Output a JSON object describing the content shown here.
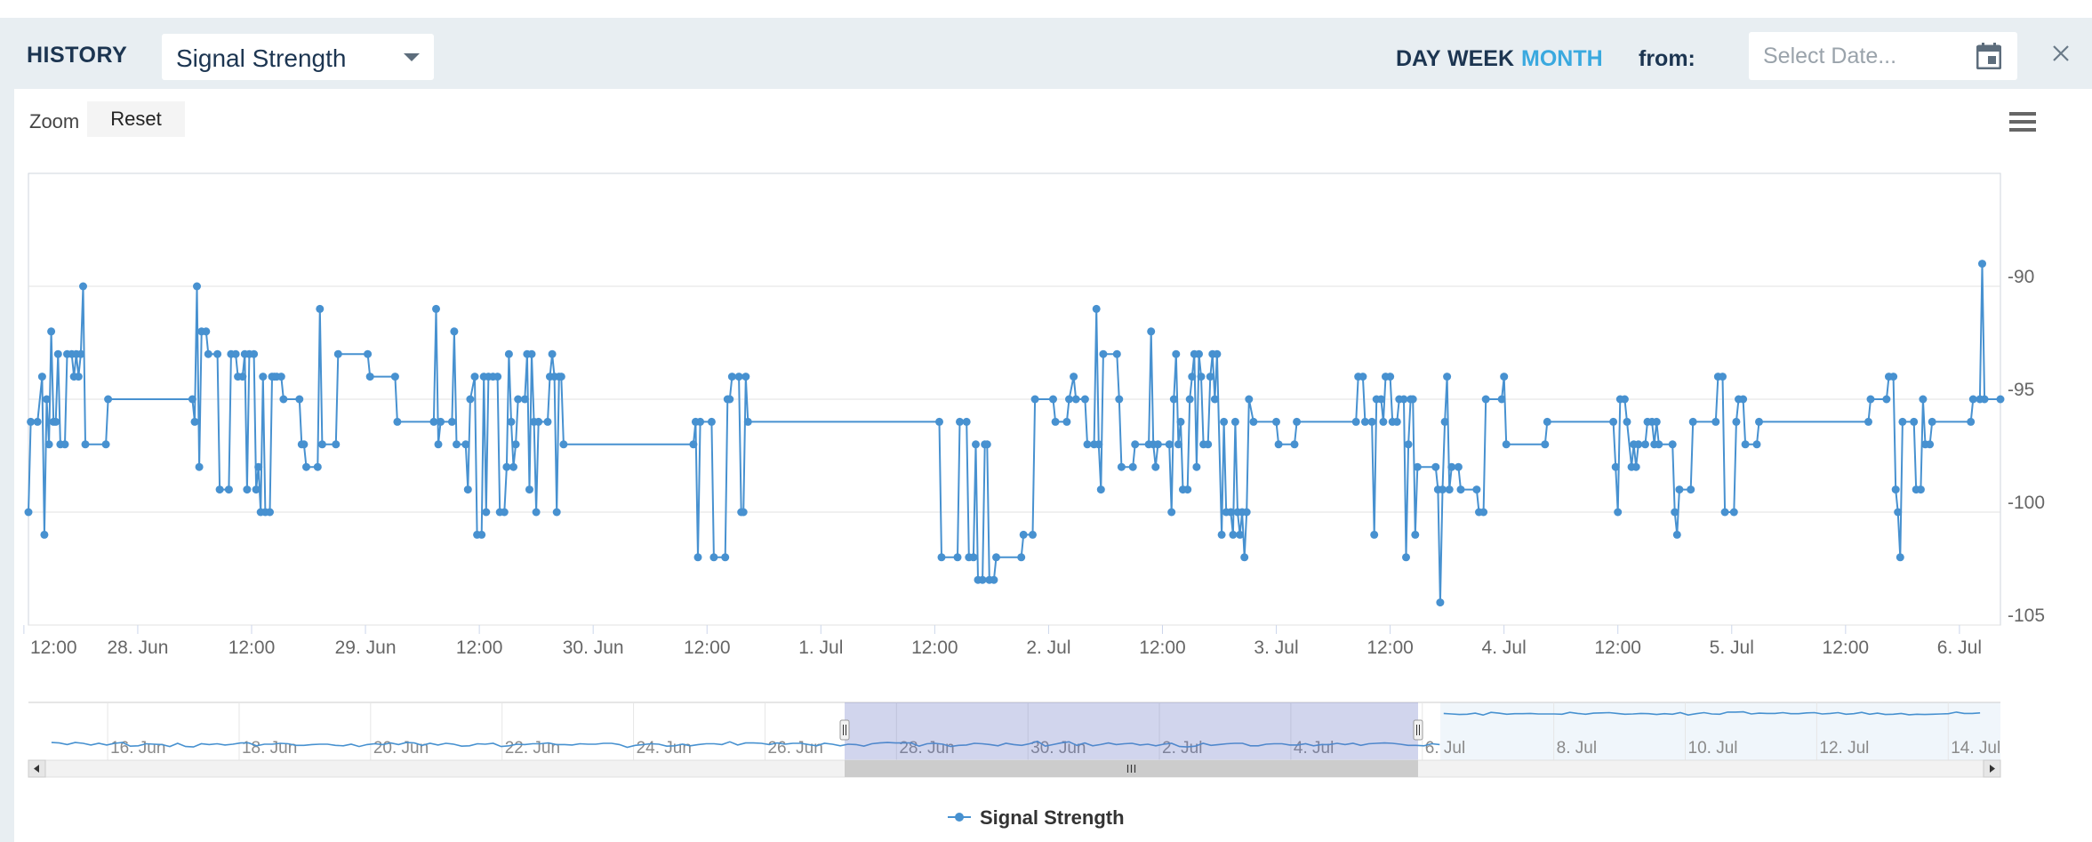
{
  "header": {
    "title": "HISTORY",
    "metric_select": {
      "value": "Signal Strength"
    },
    "range_buttons": [
      {
        "label": "DAY",
        "active": false
      },
      {
        "label": "WEEK",
        "active": false
      },
      {
        "label": "MONTH",
        "active": true
      }
    ],
    "from_label": "from:",
    "date_input": {
      "placeholder": "Select Date...",
      "value": ""
    }
  },
  "toolbar": {
    "zoom_label": "Zoom",
    "reset_label": "Reset"
  },
  "icons": {
    "dropdown": "chevron-down-icon",
    "calendar": "calendar-icon",
    "close": "close-icon",
    "chart_menu": "hamburger-menu-icon"
  },
  "colors": {
    "series": "#4791d0",
    "accent": "#3aa9df",
    "title": "#1c3551",
    "navigator_mask": "#6673c4"
  },
  "chart_data": {
    "type": "line",
    "title": "",
    "xlabel": "",
    "ylabel": "",
    "ylim": [
      -105,
      -85
    ],
    "y_ticks": [
      "-90",
      "-95",
      "-100",
      "-105"
    ],
    "x_tick_labels": [
      "12:00",
      "28. Jun",
      "12:00",
      "29. Jun",
      "12:00",
      "30. Jun",
      "12:00",
      "1. Jul",
      "12:00",
      "2. Jul",
      "12:00",
      "3. Jul",
      "12:00",
      "4. Jul",
      "12:00",
      "5. Jul",
      "12:00",
      "6. Jul"
    ],
    "x_range_days": [
      -0.48,
      8.18
    ],
    "series": [
      {
        "name": "Signal Strength",
        "x_unit": "days since 28. Jun 00:00",
        "points": [
          [
            -0.48,
            -100
          ],
          [
            -0.47,
            -96
          ],
          [
            -0.44,
            -96
          ],
          [
            -0.42,
            -94
          ],
          [
            -0.41,
            -101
          ],
          [
            -0.4,
            -95
          ],
          [
            -0.39,
            -97
          ],
          [
            -0.38,
            -92
          ],
          [
            -0.37,
            -96
          ],
          [
            -0.36,
            -96
          ],
          [
            -0.35,
            -93
          ],
          [
            -0.34,
            -97
          ],
          [
            -0.32,
            -97
          ],
          [
            -0.31,
            -93
          ],
          [
            -0.29,
            -93
          ],
          [
            -0.28,
            -94
          ],
          [
            -0.27,
            -93
          ],
          [
            -0.26,
            -94
          ],
          [
            -0.25,
            -93
          ],
          [
            -0.24,
            -90
          ],
          [
            -0.23,
            -97
          ],
          [
            -0.14,
            -97
          ],
          [
            -0.13,
            -95
          ],
          [
            0.24,
            -95
          ],
          [
            0.25,
            -96
          ],
          [
            0.26,
            -90
          ],
          [
            0.27,
            -98
          ],
          [
            0.28,
            -92
          ],
          [
            0.3,
            -92
          ],
          [
            0.31,
            -93
          ],
          [
            0.35,
            -93
          ],
          [
            0.36,
            -99
          ],
          [
            0.4,
            -99
          ],
          [
            0.41,
            -93
          ],
          [
            0.43,
            -93
          ],
          [
            0.44,
            -94
          ],
          [
            0.46,
            -94
          ],
          [
            0.47,
            -93
          ],
          [
            0.48,
            -99
          ],
          [
            0.49,
            -93
          ],
          [
            0.51,
            -93
          ],
          [
            0.52,
            -99
          ],
          [
            0.53,
            -98
          ],
          [
            0.54,
            -100
          ],
          [
            0.55,
            -94
          ],
          [
            0.56,
            -100
          ],
          [
            0.58,
            -100
          ],
          [
            0.59,
            -94
          ],
          [
            0.6,
            -94
          ],
          [
            0.61,
            -94
          ],
          [
            0.63,
            -94
          ],
          [
            0.64,
            -95
          ],
          [
            0.71,
            -95
          ],
          [
            0.72,
            -97
          ],
          [
            0.73,
            -97
          ],
          [
            0.74,
            -98
          ],
          [
            0.79,
            -98
          ],
          [
            0.8,
            -91
          ],
          [
            0.81,
            -97
          ],
          [
            0.87,
            -97
          ],
          [
            0.88,
            -93
          ],
          [
            1.01,
            -93
          ],
          [
            1.02,
            -94
          ],
          [
            1.13,
            -94
          ],
          [
            1.14,
            -96
          ],
          [
            1.3,
            -96
          ],
          [
            1.31,
            -91
          ],
          [
            1.32,
            -97
          ],
          [
            1.33,
            -96
          ],
          [
            1.38,
            -96
          ],
          [
            1.39,
            -92
          ],
          [
            1.4,
            -97
          ],
          [
            1.44,
            -97
          ],
          [
            1.45,
            -99
          ],
          [
            1.46,
            -95
          ],
          [
            1.48,
            -94
          ],
          [
            1.49,
            -101
          ],
          [
            1.51,
            -101
          ],
          [
            1.52,
            -94
          ],
          [
            1.53,
            -100
          ],
          [
            1.54,
            -94
          ],
          [
            1.56,
            -94
          ],
          [
            1.58,
            -94
          ],
          [
            1.59,
            -100
          ],
          [
            1.61,
            -100
          ],
          [
            1.62,
            -98
          ],
          [
            1.63,
            -93
          ],
          [
            1.64,
            -96
          ],
          [
            1.65,
            -98
          ],
          [
            1.66,
            -97
          ],
          [
            1.67,
            -95
          ],
          [
            1.7,
            -95
          ],
          [
            1.71,
            -93
          ],
          [
            1.72,
            -99
          ],
          [
            1.73,
            -93
          ],
          [
            1.74,
            -96
          ],
          [
            1.75,
            -100
          ],
          [
            1.76,
            -96
          ],
          [
            1.8,
            -96
          ],
          [
            1.81,
            -94
          ],
          [
            1.82,
            -93
          ],
          [
            1.83,
            -94
          ],
          [
            1.84,
            -100
          ],
          [
            1.85,
            -94
          ],
          [
            1.86,
            -94
          ],
          [
            1.87,
            -97
          ],
          [
            2.44,
            -97
          ],
          [
            2.45,
            -96
          ],
          [
            2.46,
            -102
          ],
          [
            2.47,
            -96
          ],
          [
            2.52,
            -96
          ],
          [
            2.53,
            -102
          ],
          [
            2.58,
            -102
          ],
          [
            2.59,
            -95
          ],
          [
            2.6,
            -95
          ],
          [
            2.61,
            -94
          ],
          [
            2.64,
            -94
          ],
          [
            2.65,
            -100
          ],
          [
            2.66,
            -100
          ],
          [
            2.67,
            -94
          ],
          [
            2.68,
            -96
          ],
          [
            3.52,
            -96
          ],
          [
            3.53,
            -102
          ],
          [
            3.6,
            -102
          ],
          [
            3.61,
            -96
          ],
          [
            3.64,
            -96
          ],
          [
            3.65,
            -102
          ],
          [
            3.67,
            -102
          ],
          [
            3.68,
            -97
          ],
          [
            3.69,
            -103
          ],
          [
            3.71,
            -103
          ],
          [
            3.72,
            -97
          ],
          [
            3.73,
            -97
          ],
          [
            3.74,
            -103
          ],
          [
            3.76,
            -103
          ],
          [
            3.77,
            -102
          ],
          [
            3.88,
            -102
          ],
          [
            3.89,
            -101
          ],
          [
            3.93,
            -101
          ],
          [
            3.94,
            -95
          ],
          [
            4.02,
            -95
          ],
          [
            4.03,
            -96
          ],
          [
            4.08,
            -96
          ],
          [
            4.09,
            -95
          ],
          [
            4.11,
            -94
          ],
          [
            4.12,
            -95
          ],
          [
            4.16,
            -95
          ],
          [
            4.17,
            -97
          ],
          [
            4.2,
            -97
          ],
          [
            4.21,
            -91
          ],
          [
            4.22,
            -97
          ],
          [
            4.23,
            -99
          ],
          [
            4.24,
            -93
          ],
          [
            4.3,
            -93
          ],
          [
            4.31,
            -95
          ],
          [
            4.32,
            -98
          ],
          [
            4.37,
            -98
          ],
          [
            4.38,
            -97
          ],
          [
            4.44,
            -97
          ],
          [
            4.45,
            -92
          ],
          [
            4.46,
            -97
          ],
          [
            4.47,
            -98
          ],
          [
            4.48,
            -97
          ],
          [
            4.53,
            -97
          ],
          [
            4.54,
            -100
          ],
          [
            4.55,
            -95
          ],
          [
            4.56,
            -93
          ],
          [
            4.57,
            -97
          ],
          [
            4.58,
            -96
          ],
          [
            4.59,
            -99
          ],
          [
            4.61,
            -99
          ],
          [
            4.62,
            -95
          ],
          [
            4.63,
            -94
          ],
          [
            4.64,
            -93
          ],
          [
            4.65,
            -98
          ],
          [
            4.66,
            -93
          ],
          [
            4.67,
            -94
          ],
          [
            4.68,
            -97
          ],
          [
            4.7,
            -97
          ],
          [
            4.71,
            -94
          ],
          [
            4.72,
            -93
          ],
          [
            4.73,
            -95
          ],
          [
            4.74,
            -93
          ],
          [
            4.76,
            -101
          ],
          [
            4.77,
            -96
          ],
          [
            4.78,
            -100
          ],
          [
            4.8,
            -100
          ],
          [
            4.81,
            -101
          ],
          [
            4.82,
            -96
          ],
          [
            4.83,
            -100
          ],
          [
            4.84,
            -101
          ],
          [
            4.85,
            -100
          ],
          [
            4.86,
            -102
          ],
          [
            4.87,
            -100
          ],
          [
            4.88,
            -95
          ],
          [
            4.9,
            -96
          ],
          [
            5.0,
            -96
          ],
          [
            5.01,
            -97
          ],
          [
            5.08,
            -97
          ],
          [
            5.09,
            -96
          ],
          [
            5.35,
            -96
          ],
          [
            5.36,
            -94
          ],
          [
            5.38,
            -94
          ],
          [
            5.39,
            -96
          ],
          [
            5.42,
            -96
          ],
          [
            5.43,
            -101
          ],
          [
            5.44,
            -95
          ],
          [
            5.46,
            -95
          ],
          [
            5.47,
            -96
          ],
          [
            5.48,
            -94
          ],
          [
            5.5,
            -94
          ],
          [
            5.51,
            -96
          ],
          [
            5.53,
            -96
          ],
          [
            5.54,
            -95
          ],
          [
            5.56,
            -95
          ],
          [
            5.57,
            -102
          ],
          [
            5.58,
            -97
          ],
          [
            5.59,
            -95
          ],
          [
            5.6,
            -95
          ],
          [
            5.61,
            -101
          ],
          [
            5.62,
            -98
          ],
          [
            5.7,
            -98
          ],
          [
            5.71,
            -99
          ],
          [
            5.72,
            -104
          ],
          [
            5.73,
            -99
          ],
          [
            5.74,
            -96
          ],
          [
            5.75,
            -94
          ],
          [
            5.76,
            -99
          ],
          [
            5.77,
            -98
          ],
          [
            5.8,
            -98
          ],
          [
            5.81,
            -99
          ],
          [
            5.88,
            -99
          ],
          [
            5.89,
            -100
          ],
          [
            5.91,
            -100
          ],
          [
            5.92,
            -95
          ],
          [
            5.99,
            -95
          ],
          [
            6.0,
            -94
          ],
          [
            6.01,
            -97
          ],
          [
            6.18,
            -97
          ],
          [
            6.19,
            -96
          ],
          [
            6.48,
            -96
          ],
          [
            6.49,
            -98
          ],
          [
            6.5,
            -100
          ],
          [
            6.51,
            -95
          ],
          [
            6.53,
            -95
          ],
          [
            6.54,
            -96
          ],
          [
            6.56,
            -98
          ],
          [
            6.57,
            -97
          ],
          [
            6.58,
            -98
          ],
          [
            6.59,
            -97
          ],
          [
            6.62,
            -97
          ],
          [
            6.63,
            -96
          ],
          [
            6.65,
            -96
          ],
          [
            6.66,
            -97
          ],
          [
            6.67,
            -96
          ],
          [
            6.68,
            -97
          ],
          [
            6.74,
            -97
          ],
          [
            6.75,
            -100
          ],
          [
            6.76,
            -101
          ],
          [
            6.77,
            -99
          ],
          [
            6.82,
            -99
          ],
          [
            6.83,
            -96
          ],
          [
            6.93,
            -96
          ],
          [
            6.94,
            -94
          ],
          [
            6.96,
            -94
          ],
          [
            6.97,
            -100
          ],
          [
            7.01,
            -100
          ],
          [
            7.02,
            -96
          ],
          [
            7.03,
            -95
          ],
          [
            7.05,
            -95
          ],
          [
            7.06,
            -97
          ],
          [
            7.11,
            -97
          ],
          [
            7.12,
            -96
          ],
          [
            7.6,
            -96
          ],
          [
            7.61,
            -95
          ],
          [
            7.68,
            -95
          ],
          [
            7.69,
            -94
          ],
          [
            7.71,
            -94
          ],
          [
            7.72,
            -99
          ],
          [
            7.73,
            -100
          ],
          [
            7.74,
            -102
          ],
          [
            7.75,
            -96
          ],
          [
            7.8,
            -96
          ],
          [
            7.81,
            -99
          ],
          [
            7.83,
            -99
          ],
          [
            7.84,
            -95
          ],
          [
            7.85,
            -97
          ],
          [
            7.87,
            -97
          ],
          [
            7.88,
            -96
          ],
          [
            8.05,
            -96
          ],
          [
            8.06,
            -95
          ],
          [
            8.09,
            -95
          ],
          [
            8.1,
            -89
          ],
          [
            8.11,
            -95
          ],
          [
            8.18,
            -95
          ]
        ]
      }
    ],
    "navigator": {
      "tick_labels": [
        "16. Jun",
        "18. Jun",
        "20. Jun",
        "22. Jun",
        "24. Jun",
        "26. Jun",
        "28. Jun",
        "30. Jun",
        "2. Jul",
        "4. Jul",
        "6. Jul",
        "8. Jul",
        "10. Jul",
        "12. Jul",
        "14. Jul"
      ],
      "range_days": [
        -13.3,
        16.7
      ],
      "selection_days": [
        -0.48,
        8.18
      ],
      "filled_until_day": 8.18
    },
    "legend": {
      "label": "Signal Strength",
      "position": "bottom-center"
    }
  }
}
